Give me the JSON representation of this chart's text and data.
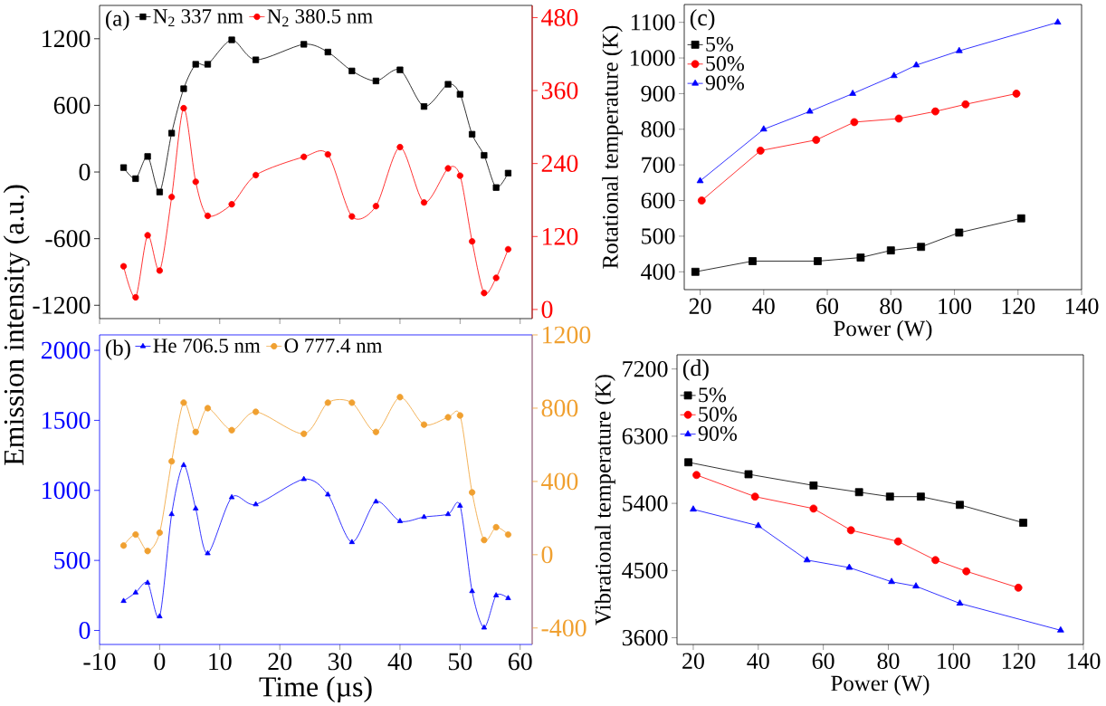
{
  "chart_data": [
    {
      "type": "line",
      "ylabel": "Emission intensity (a.u.)",
      "annotations": [
        "(a)"
      ],
      "x": [
        -6,
        -4,
        -2,
        0,
        2,
        4,
        6,
        8,
        12,
        16,
        24,
        28,
        32,
        36,
        40,
        44,
        48,
        50,
        52,
        54,
        56,
        58
      ],
      "series": [
        {
          "name": "N$_{2}$ 337 nm",
          "color": "#000000",
          "marker": "square",
          "values": [
            40,
            -60,
            140,
            -180,
            350,
            750,
            970,
            970,
            1190,
            1010,
            1150,
            1080,
            910,
            820,
            920,
            590,
            790,
            700,
            340,
            150,
            -140,
            -10
          ]
        },
        {
          "name": "N$_{2}$ 380.5 nm",
          "color": "#ff0000",
          "marker": "circle",
          "axis": "y2",
          "values": [
            71,
            20,
            122,
            64,
            185,
            331,
            210,
            154,
            173,
            221,
            251,
            255,
            153,
            170,
            267,
            176,
            232,
            220,
            112,
            27,
            52,
            99
          ]
        }
      ],
      "xlim": [
        -10,
        62
      ],
      "xticks": [
        -10,
        0,
        10,
        20,
        30,
        40,
        50,
        60
      ],
      "ylim": [
        -1320,
        1500
      ],
      "yticks": [
        -1200,
        -600,
        0,
        600,
        1200
      ],
      "y2lim": [
        -15,
        500
      ],
      "y2ticks": [
        0,
        120,
        240,
        360,
        480
      ],
      "tick_labels": "y",
      "legend": "top left",
      "line_style": "solid"
    },
    {
      "type": "line",
      "xlabel": "Time (µs)",
      "annotations": [
        "(b)"
      ],
      "x": [
        -6,
        -4,
        -2,
        0,
        2,
        4,
        6,
        8,
        12,
        16,
        24,
        28,
        32,
        36,
        40,
        44,
        48,
        50,
        52,
        54,
        56,
        58
      ],
      "series": [
        {
          "name": "He 706.5 nm",
          "color": "#0000ff",
          "marker": "triangle",
          "values": [
            210,
            270,
            340,
            100,
            830,
            1180,
            870,
            550,
            950,
            900,
            1080,
            970,
            630,
            920,
            780,
            810,
            830,
            890,
            280,
            20,
            250,
            230
          ]
        },
        {
          "name": "O 777.4 nm",
          "color": "#f0a030",
          "marker": "circle",
          "axis": "y2",
          "values": [
            50,
            110,
            20,
            120,
            510,
            830,
            670,
            800,
            680,
            780,
            660,
            830,
            830,
            670,
            860,
            710,
            750,
            760,
            340,
            80,
            150,
            110
          ]
        }
      ],
      "xlim": [
        -10,
        62
      ],
      "xticks": [
        -10,
        0,
        10,
        20,
        30,
        40,
        50,
        60
      ],
      "ylim": [
        -100,
        2110
      ],
      "yticks": [
        0,
        500,
        1000,
        1500,
        2000
      ],
      "y2lim": [
        -490,
        1200
      ],
      "y2ticks": [
        -400,
        0,
        400,
        800,
        1200
      ],
      "legend": "top left",
      "line_style": "solid"
    },
    {
      "type": "line",
      "xlabel": "Power (W)",
      "ylabel": "Rotational temperature (K)",
      "annotations": [
        "(c)"
      ],
      "series": [
        {
          "name": "5%",
          "color": "#000000",
          "marker": "square",
          "x": [
            18.5,
            36.5,
            57,
            70.5,
            80,
            89.5,
            101.5,
            121
          ],
          "values": [
            400,
            430,
            430,
            440,
            460,
            470,
            510,
            550
          ]
        },
        {
          "name": "50%",
          "color": "#ff0000",
          "marker": "circle",
          "x": [
            20.5,
            39,
            56.5,
            68.5,
            82.5,
            94,
            103.5,
            119.5
          ],
          "values": [
            600,
            740,
            770,
            820,
            830,
            850,
            870,
            900
          ]
        },
        {
          "name": "90%",
          "color": "#0000ff",
          "marker": "triangle",
          "x": [
            20,
            40,
            54.5,
            68,
            81,
            88,
            101.5,
            132.5
          ],
          "values": [
            655,
            800,
            850,
            900,
            950,
            980,
            1020,
            1100
          ]
        }
      ],
      "xlim": [
        15,
        140
      ],
      "xticks": [
        20,
        40,
        60,
        80,
        100,
        120,
        140
      ],
      "ylim": [
        350,
        1150
      ],
      "yticks": [
        400,
        500,
        600,
        700,
        800,
        900,
        1000,
        1100
      ],
      "legend": "top left",
      "line_style": "solid"
    },
    {
      "type": "line",
      "xlabel": "Power (W)",
      "ylabel": "Vibrational temperature (K)",
      "annotations": [
        "(d)"
      ],
      "series": [
        {
          "name": "5%",
          "color": "#000000",
          "marker": "square",
          "x": [
            18.5,
            37,
            57,
            71,
            80.5,
            90,
            102,
            121.5
          ],
          "values": [
            5950,
            5790,
            5640,
            5550,
            5490,
            5490,
            5380,
            5140
          ]
        },
        {
          "name": "50%",
          "color": "#ff0000",
          "marker": "circle",
          "x": [
            21,
            39,
            57,
            68.5,
            83,
            94.5,
            104,
            120
          ],
          "values": [
            5780,
            5490,
            5330,
            5040,
            4890,
            4640,
            4490,
            4270
          ]
        },
        {
          "name": "90%",
          "color": "#0000ff",
          "marker": "triangle",
          "x": [
            20,
            40,
            55,
            68,
            81,
            88.5,
            102,
            133
          ],
          "values": [
            5320,
            5100,
            4640,
            4540,
            4350,
            4290,
            4060,
            3700
          ]
        }
      ],
      "xlim": [
        15,
        140
      ],
      "xticks": [
        20,
        40,
        60,
        80,
        100,
        120,
        140
      ],
      "ylim": [
        3510,
        7390
      ],
      "yticks": [
        3600,
        4500,
        5400,
        6300,
        7200
      ],
      "legend": "top left",
      "line_style": "solid"
    }
  ]
}
